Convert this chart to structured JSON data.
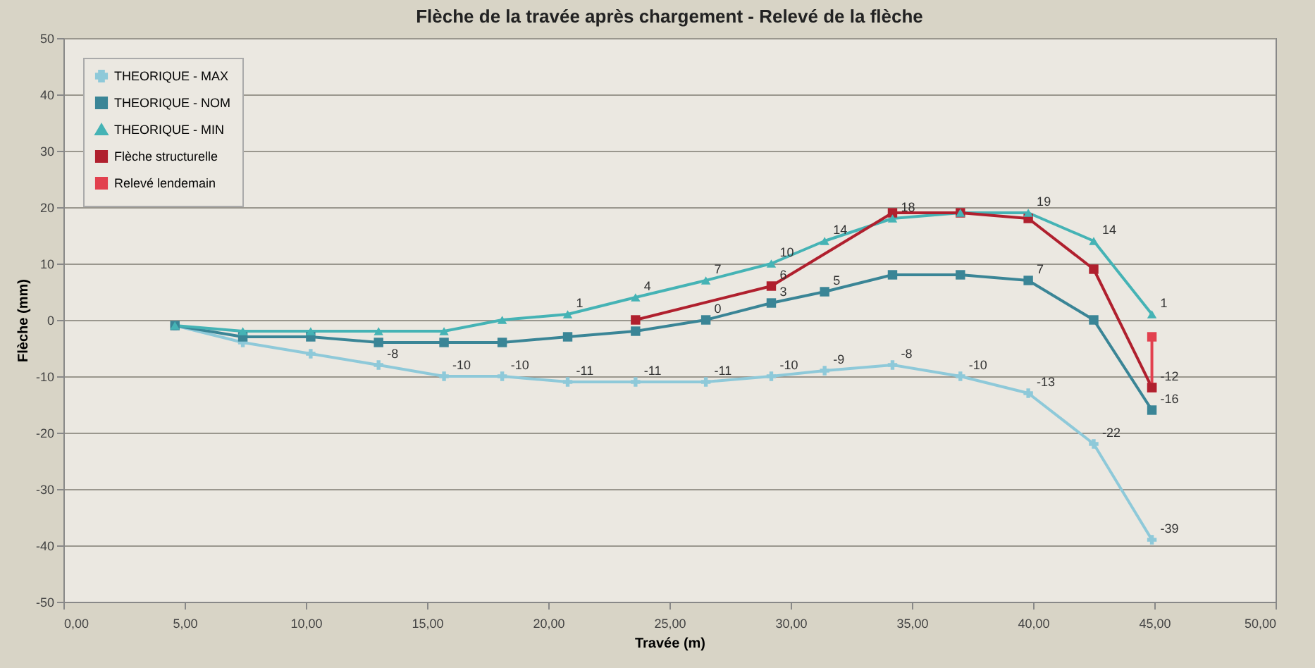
{
  "chart_data": {
    "type": "line",
    "title": "Flèche de la travée après chargement - Relevé de la flèche",
    "xlabel": "Travée (m)",
    "ylabel": "Flèche (mm)",
    "xlim": [
      0,
      50
    ],
    "xticks": [
      {
        "value": 0,
        "label": "0,00"
      },
      {
        "value": 5,
        "label": "5,00"
      },
      {
        "value": 10,
        "label": "10,00"
      },
      {
        "value": 15,
        "label": "15,00"
      },
      {
        "value": 20,
        "label": "20,00"
      },
      {
        "value": 25,
        "label": "25,00"
      },
      {
        "value": 30,
        "label": "30,00"
      },
      {
        "value": 35,
        "label": "35,00"
      },
      {
        "value": 40,
        "label": "40,00"
      },
      {
        "value": 45,
        "label": "45,00"
      },
      {
        "value": 50,
        "label": "50,00"
      }
    ],
    "ylim": [
      -50,
      50
    ],
    "yticks": [
      -50,
      -40,
      -30,
      -20,
      -10,
      0,
      10,
      20,
      30,
      40,
      50
    ],
    "grid": "y",
    "legend": "top left",
    "series": [
      {
        "name": "THEORIQUE - MAX",
        "color": "#8ec9d9",
        "marker": "cross",
        "x": [
          4.6,
          7.4,
          10.2,
          13,
          15.7,
          18.1,
          20.8,
          23.6,
          26.5,
          29.2,
          31.4,
          34.2,
          37,
          39.8,
          42.5,
          44.9
        ],
        "values": [
          -1,
          -4,
          -6,
          -8,
          -10,
          -10,
          -11,
          -11,
          -11,
          -10,
          -9,
          -8,
          -10,
          -13,
          -22,
          -39
        ],
        "value_labels": [
          null,
          null,
          null,
          "-8",
          "-10",
          "-10",
          "-11",
          "-11",
          "-11",
          "-10",
          "-9",
          "-8",
          "-10",
          "-13",
          "-22",
          "-39"
        ]
      },
      {
        "name": "THEORIQUE - NOM",
        "color": "#3a8596",
        "marker": "square",
        "x": [
          4.6,
          7.4,
          10.2,
          13,
          15.7,
          18.1,
          20.8,
          23.6,
          26.5,
          29.2,
          31.4,
          34.2,
          37,
          39.8,
          42.5,
          44.9
        ],
        "values": [
          -1,
          -3,
          -3,
          -4,
          -4,
          -4,
          -3,
          -2,
          0,
          3,
          5,
          8,
          8,
          7,
          0,
          -16
        ],
        "value_labels": [
          null,
          null,
          null,
          null,
          null,
          null,
          null,
          null,
          "0",
          "3",
          "5",
          null,
          null,
          "7",
          null,
          "-16"
        ]
      },
      {
        "name": "THEORIQUE - MIN",
        "color": "#45b3b5",
        "marker": "triangle",
        "x": [
          4.6,
          7.4,
          10.2,
          13,
          15.7,
          18.1,
          20.8,
          23.6,
          26.5,
          29.2,
          31.4,
          34.2,
          37,
          39.8,
          42.5,
          44.9
        ],
        "values": [
          -1,
          -2,
          -2,
          -2,
          -2,
          0,
          1,
          4,
          7,
          10,
          14,
          18,
          19,
          19,
          14,
          1
        ],
        "value_labels": [
          null,
          null,
          null,
          null,
          null,
          null,
          "1",
          "4",
          "7",
          "10",
          "14",
          "18",
          null,
          "19",
          "14",
          "1"
        ]
      },
      {
        "name": "Flèche structurelle",
        "color": "#b0202e",
        "marker": "square",
        "x": [
          23.6,
          29.2,
          34.2,
          37,
          39.8,
          42.5,
          44.9
        ],
        "values": [
          0,
          6,
          19,
          19,
          18,
          9,
          -12
        ],
        "value_labels": [
          null,
          "6",
          null,
          null,
          null,
          null,
          "-12"
        ]
      },
      {
        "name": "Relevé lendemain",
        "color": "#e2404e",
        "marker": "square",
        "x": [
          44.9,
          44.9
        ],
        "values": [
          -12,
          -3
        ]
      }
    ]
  }
}
